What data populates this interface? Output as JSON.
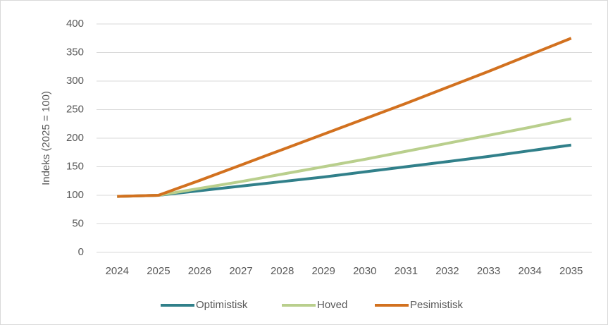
{
  "chart_data": {
    "type": "line",
    "ylabel": "Indeks (2025 = 100)",
    "categories": [
      "2024",
      "2025",
      "2026",
      "2027",
      "2028",
      "2029",
      "2030",
      "2031",
      "2032",
      "2033",
      "2034",
      "2035"
    ],
    "series": [
      {
        "name": "Optimistisk",
        "color": "#31808a",
        "values": [
          98,
          100,
          108,
          116,
          124,
          132,
          141,
          150,
          159,
          168,
          178,
          188
        ]
      },
      {
        "name": "Hoved",
        "color": "#b9cf8d",
        "values": [
          98,
          100,
          112,
          124,
          137,
          150,
          163,
          177,
          191,
          205,
          219,
          234
        ]
      },
      {
        "name": "Pesimistisk",
        "color": "#d2711f",
        "values": [
          98,
          100,
          126,
          153,
          180,
          207,
          234,
          261,
          289,
          317,
          346,
          375
        ]
      }
    ],
    "ylim": [
      0,
      400
    ],
    "yticks": [
      0,
      50,
      100,
      150,
      200,
      250,
      300,
      350,
      400
    ],
    "grid": true,
    "legend": "bottom"
  }
}
